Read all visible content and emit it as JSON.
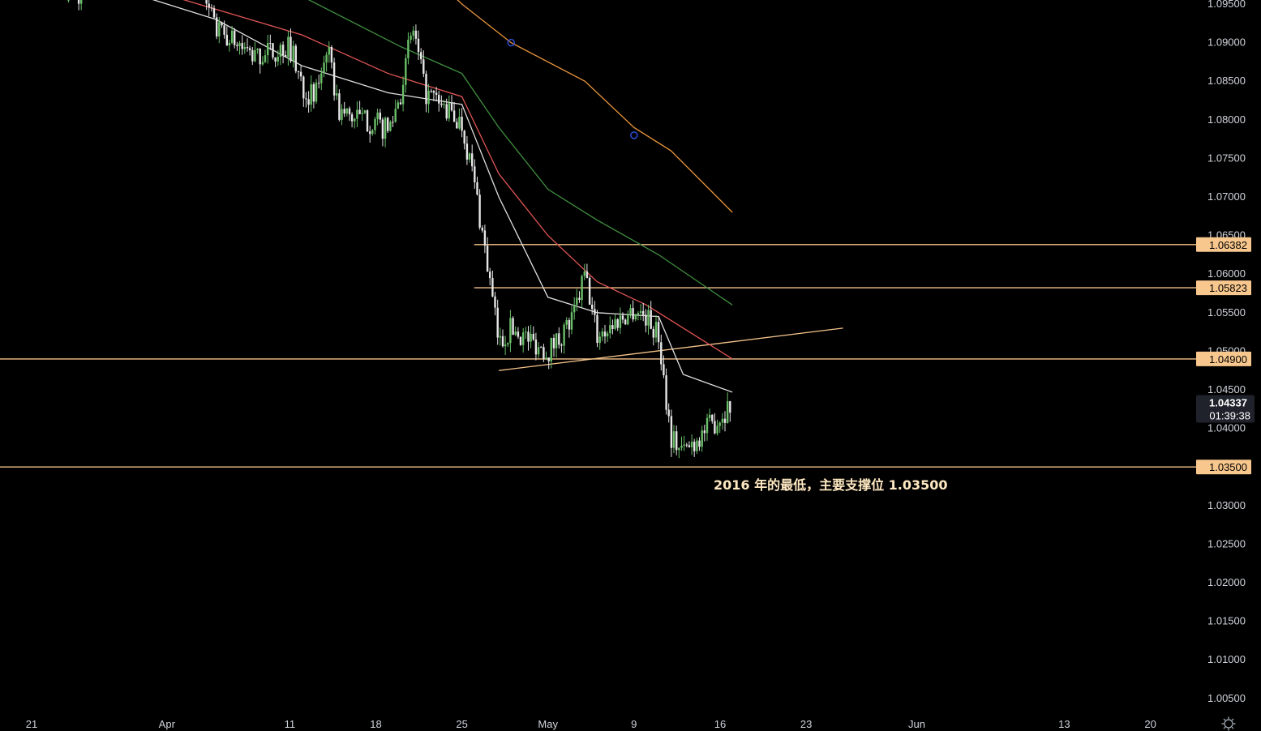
{
  "chart_data": {
    "type": "candlestick",
    "title": "",
    "y_axis": {
      "range": [
        1.0025,
        1.0955
      ],
      "ticks": [
        "1.09500",
        "1.09000",
        "1.08500",
        "1.08000",
        "1.07500",
        "1.07000",
        "1.06500",
        "1.06000",
        "1.05500",
        "1.05000",
        "1.04500",
        "1.04000",
        "1.03000",
        "1.02500",
        "1.02000",
        "1.01500",
        "1.01000",
        "1.00500"
      ]
    },
    "x_axis": {
      "labels": [
        {
          "text": "21",
          "date": "2022-03-21"
        },
        {
          "text": "Apr",
          "date": "2022-04-01"
        },
        {
          "text": "11",
          "date": "2022-04-11"
        },
        {
          "text": "18",
          "date": "2022-04-18"
        },
        {
          "text": "25",
          "date": "2022-04-25"
        },
        {
          "text": "May",
          "date": "2022-05-02"
        },
        {
          "text": "9",
          "date": "2022-05-09"
        },
        {
          "text": "16",
          "date": "2022-05-16"
        },
        {
          "text": "23",
          "date": "2022-05-23"
        },
        {
          "text": "Jun",
          "date": "2022-06-01"
        },
        {
          "text": "13",
          "date": "2022-06-13"
        },
        {
          "text": "20",
          "date": "2022-06-20"
        }
      ]
    },
    "price_path": [
      [
        "2022-03-24",
        1.0962
      ],
      [
        "2022-03-25",
        1.0958
      ],
      [
        "2022-04-04",
        1.096
      ],
      [
        "2022-04-05",
        1.0915
      ],
      [
        "2022-04-06",
        1.0905
      ],
      [
        "2022-04-07",
        1.0895
      ],
      [
        "2022-04-08",
        1.088
      ],
      [
        "2022-04-11",
        1.0895
      ],
      [
        "2022-04-12",
        1.0845
      ],
      [
        "2022-04-13",
        1.0825
      ],
      [
        "2022-04-14",
        1.0895
      ],
      [
        "2022-04-15",
        1.081
      ],
      [
        "2022-04-18",
        1.0795
      ],
      [
        "2022-04-19",
        1.0785
      ],
      [
        "2022-04-20",
        1.0835
      ],
      [
        "2022-04-21",
        1.092
      ],
      [
        "2022-04-22",
        1.0835
      ],
      [
        "2022-04-25",
        1.0795
      ],
      [
        "2022-04-26",
        1.072
      ],
      [
        "2022-04-27",
        1.062
      ],
      [
        "2022-04-28",
        1.051
      ],
      [
        "2022-04-29",
        1.053
      ],
      [
        "2022-05-02",
        1.05
      ],
      [
        "2022-05-03",
        1.052
      ],
      [
        "2022-05-04",
        1.054
      ],
      [
        "2022-05-05",
        1.06
      ],
      [
        "2022-05-06",
        1.052
      ],
      [
        "2022-05-09",
        1.0555
      ],
      [
        "2022-05-10",
        1.0545
      ],
      [
        "2022-05-11",
        1.052
      ],
      [
        "2022-05-12",
        1.039
      ],
      [
        "2022-05-13",
        1.037
      ],
      [
        "2022-05-16",
        1.0415
      ],
      [
        "2022-05-17",
        1.0434
      ]
    ],
    "moving_averages": [
      {
        "color": "#e0e0e0",
        "points": [
          [
            "2022-03-24",
            1.099
          ],
          [
            "2022-04-05",
            1.093
          ],
          [
            "2022-04-12",
            1.087
          ],
          [
            "2022-04-19",
            1.0835
          ],
          [
            "2022-04-25",
            1.082
          ],
          [
            "2022-04-28",
            1.07
          ],
          [
            "2022-05-02",
            1.057
          ],
          [
            "2022-05-06",
            1.055
          ],
          [
            "2022-05-11",
            1.0545
          ],
          [
            "2022-05-13",
            1.047
          ],
          [
            "2022-05-17",
            1.0447
          ]
        ]
      },
      {
        "color": "#e05555",
        "points": [
          [
            "2022-03-24",
            1.1
          ],
          [
            "2022-04-12",
            1.091
          ],
          [
            "2022-04-19",
            1.086
          ],
          [
            "2022-04-25",
            1.083
          ],
          [
            "2022-04-28",
            1.073
          ],
          [
            "2022-05-02",
            1.065
          ],
          [
            "2022-05-06",
            1.059
          ],
          [
            "2022-05-10",
            1.056
          ],
          [
            "2022-05-13",
            1.053
          ],
          [
            "2022-05-17",
            1.049
          ]
        ]
      },
      {
        "color": "#3f8f3f",
        "points": [
          [
            "2022-03-24",
            1.101
          ],
          [
            "2022-04-12",
            1.096
          ],
          [
            "2022-04-20",
            1.0895
          ],
          [
            "2022-04-25",
            1.086
          ],
          [
            "2022-04-28",
            1.079
          ],
          [
            "2022-05-02",
            1.071
          ],
          [
            "2022-05-06",
            1.067
          ],
          [
            "2022-05-11",
            1.0625
          ],
          [
            "2022-05-17",
            1.056
          ]
        ]
      },
      {
        "color": "#e8953a",
        "points": [
          [
            "2022-04-21",
            1.101
          ],
          [
            "2022-04-25",
            1.095
          ],
          [
            "2022-04-29",
            1.09
          ],
          [
            "2022-05-05",
            1.085
          ],
          [
            "2022-05-09",
            1.079
          ],
          [
            "2022-05-12",
            1.076
          ],
          [
            "2022-05-17",
            1.068
          ]
        ],
        "markers": [
          [
            "2022-04-29",
            1.09
          ],
          [
            "2022-05-09",
            1.078
          ]
        ]
      }
    ],
    "horizontal_levels": [
      {
        "price": 1.06382,
        "label": "1.06382",
        "from": "2022-04-26"
      },
      {
        "price": 1.05823,
        "label": "1.05823",
        "from": "2022-04-26"
      },
      {
        "price": 1.049,
        "label": "1.04900",
        "from": "2022-03-18"
      },
      {
        "price": 1.035,
        "label": "1.03500",
        "from": "2022-03-18"
      }
    ],
    "trendline": {
      "from": [
        "2022-04-28",
        1.0475
      ],
      "to": [
        "2022-05-26",
        1.053
      ]
    },
    "current_price": {
      "value": "1.04337",
      "countdown": "01:39:38",
      "price": 1.04337
    },
    "annotation": {
      "text": "2016 年的最低，主要支撑位 1.03500",
      "date": "2022-05-16",
      "price": 1.0321
    }
  }
}
